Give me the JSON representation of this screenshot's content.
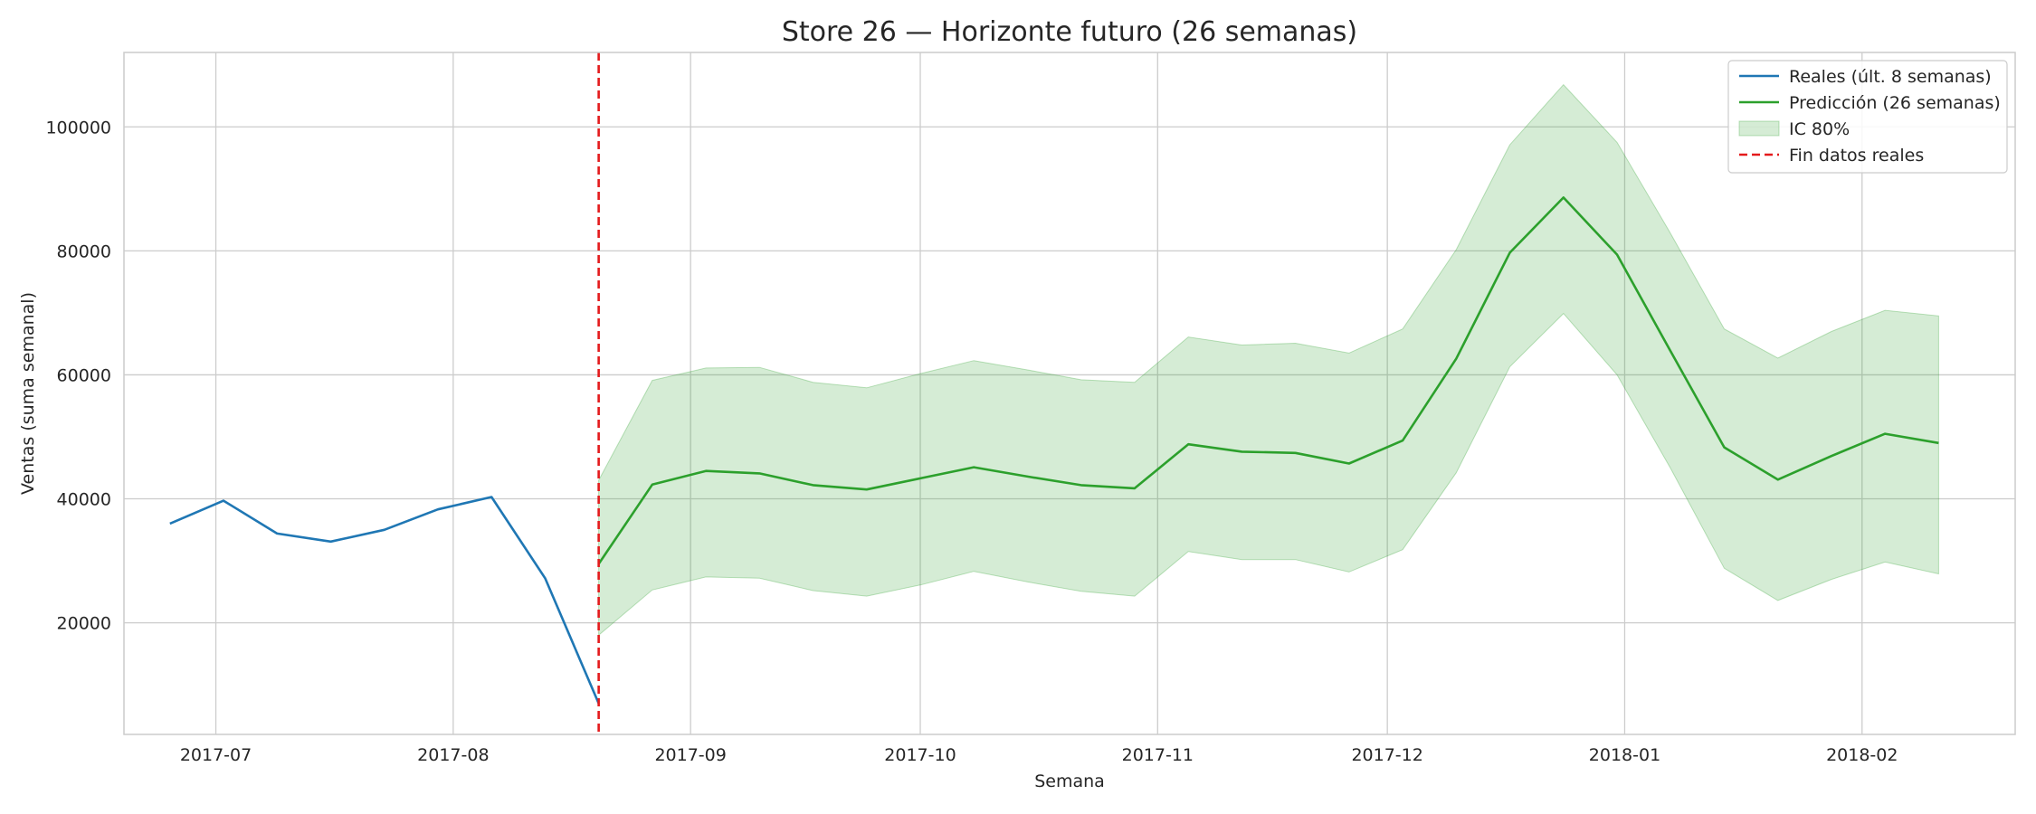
{
  "chart_data": {
    "type": "line",
    "title": "Store 26 — Horizonte futuro (26 semanas)",
    "xlabel": "Semana",
    "ylabel": "Ventas (suma semanal)",
    "x_range": [
      "2017-06-19",
      "2018-02-21"
    ],
    "ylim": [
      2000,
      112000
    ],
    "y_ticks": [
      20000,
      40000,
      60000,
      80000,
      100000
    ],
    "x_ticks": [
      {
        "date": "2017-07-01",
        "label": "2017-07"
      },
      {
        "date": "2017-08-01",
        "label": "2017-08"
      },
      {
        "date": "2017-09-01",
        "label": "2017-09"
      },
      {
        "date": "2017-10-01",
        "label": "2017-10"
      },
      {
        "date": "2017-11-01",
        "label": "2017-11"
      },
      {
        "date": "2017-12-01",
        "label": "2017-12"
      },
      {
        "date": "2018-01-01",
        "label": "2018-01"
      },
      {
        "date": "2018-02-01",
        "label": "2018-02"
      }
    ],
    "grid": true,
    "legend_position": "top-right",
    "series": [
      {
        "name": "Reales (últ. 8 semanas)",
        "type": "line",
        "color": "#1f77b4",
        "x": [
          "2017-06-25",
          "2017-07-02",
          "2017-07-09",
          "2017-07-16",
          "2017-07-23",
          "2017-07-30",
          "2017-08-06",
          "2017-08-13",
          "2017-08-20"
        ],
        "y": [
          36000,
          39700,
          34400,
          33100,
          35000,
          38300,
          40300,
          27200,
          7000
        ]
      },
      {
        "name": "Predicción (26 semanas)",
        "type": "line",
        "color": "#2ca02c",
        "x": [
          "2017-08-20",
          "2017-08-27",
          "2017-09-03",
          "2017-09-10",
          "2017-09-17",
          "2017-09-24",
          "2017-10-01",
          "2017-10-08",
          "2017-10-15",
          "2017-10-22",
          "2017-10-29",
          "2017-11-05",
          "2017-11-12",
          "2017-11-19",
          "2017-11-26",
          "2017-12-03",
          "2017-12-10",
          "2017-12-17",
          "2017-12-24",
          "2017-12-31",
          "2018-01-07",
          "2018-01-14",
          "2018-01-21",
          "2018-01-28",
          "2018-02-04",
          "2018-02-11"
        ],
        "y": [
          29500,
          42300,
          44500,
          44100,
          42200,
          41500,
          43300,
          45100,
          43600,
          42200,
          41700,
          48800,
          47600,
          47400,
          45700,
          49400,
          62600,
          79700,
          88600,
          79400,
          63800,
          48300,
          43100,
          46900,
          50500,
          49000
        ]
      },
      {
        "name": "IC 80%",
        "type": "area",
        "color": "#2ca02c",
        "opacity": 0.2,
        "x": [
          "2017-08-20",
          "2017-08-27",
          "2017-09-03",
          "2017-09-10",
          "2017-09-17",
          "2017-09-24",
          "2017-10-01",
          "2017-10-08",
          "2017-10-15",
          "2017-10-22",
          "2017-10-29",
          "2017-11-05",
          "2017-11-12",
          "2017-11-19",
          "2017-11-26",
          "2017-12-03",
          "2017-12-10",
          "2017-12-17",
          "2017-12-24",
          "2017-12-31",
          "2018-01-07",
          "2018-01-14",
          "2018-01-21",
          "2018-01-28",
          "2018-02-04",
          "2018-02-11"
        ],
        "lower": [
          18000,
          25300,
          27400,
          27200,
          25200,
          24300,
          26100,
          28300,
          26600,
          25100,
          24300,
          31500,
          30200,
          30200,
          28200,
          31800,
          44200,
          61300,
          69900,
          60000,
          44900,
          28800,
          23600,
          27000,
          29800,
          27900
        ],
        "upper": [
          43000,
          59100,
          61100,
          61200,
          58800,
          57900,
          60200,
          62300,
          60800,
          59200,
          58800,
          66100,
          64800,
          65100,
          63500,
          67400,
          80200,
          97100,
          106800,
          97500,
          82800,
          67400,
          62700,
          67000,
          70400,
          69500
        ]
      },
      {
        "name": "Fin datos reales",
        "type": "vline",
        "color": "#e41a1c",
        "x": "2017-08-20"
      }
    ]
  }
}
